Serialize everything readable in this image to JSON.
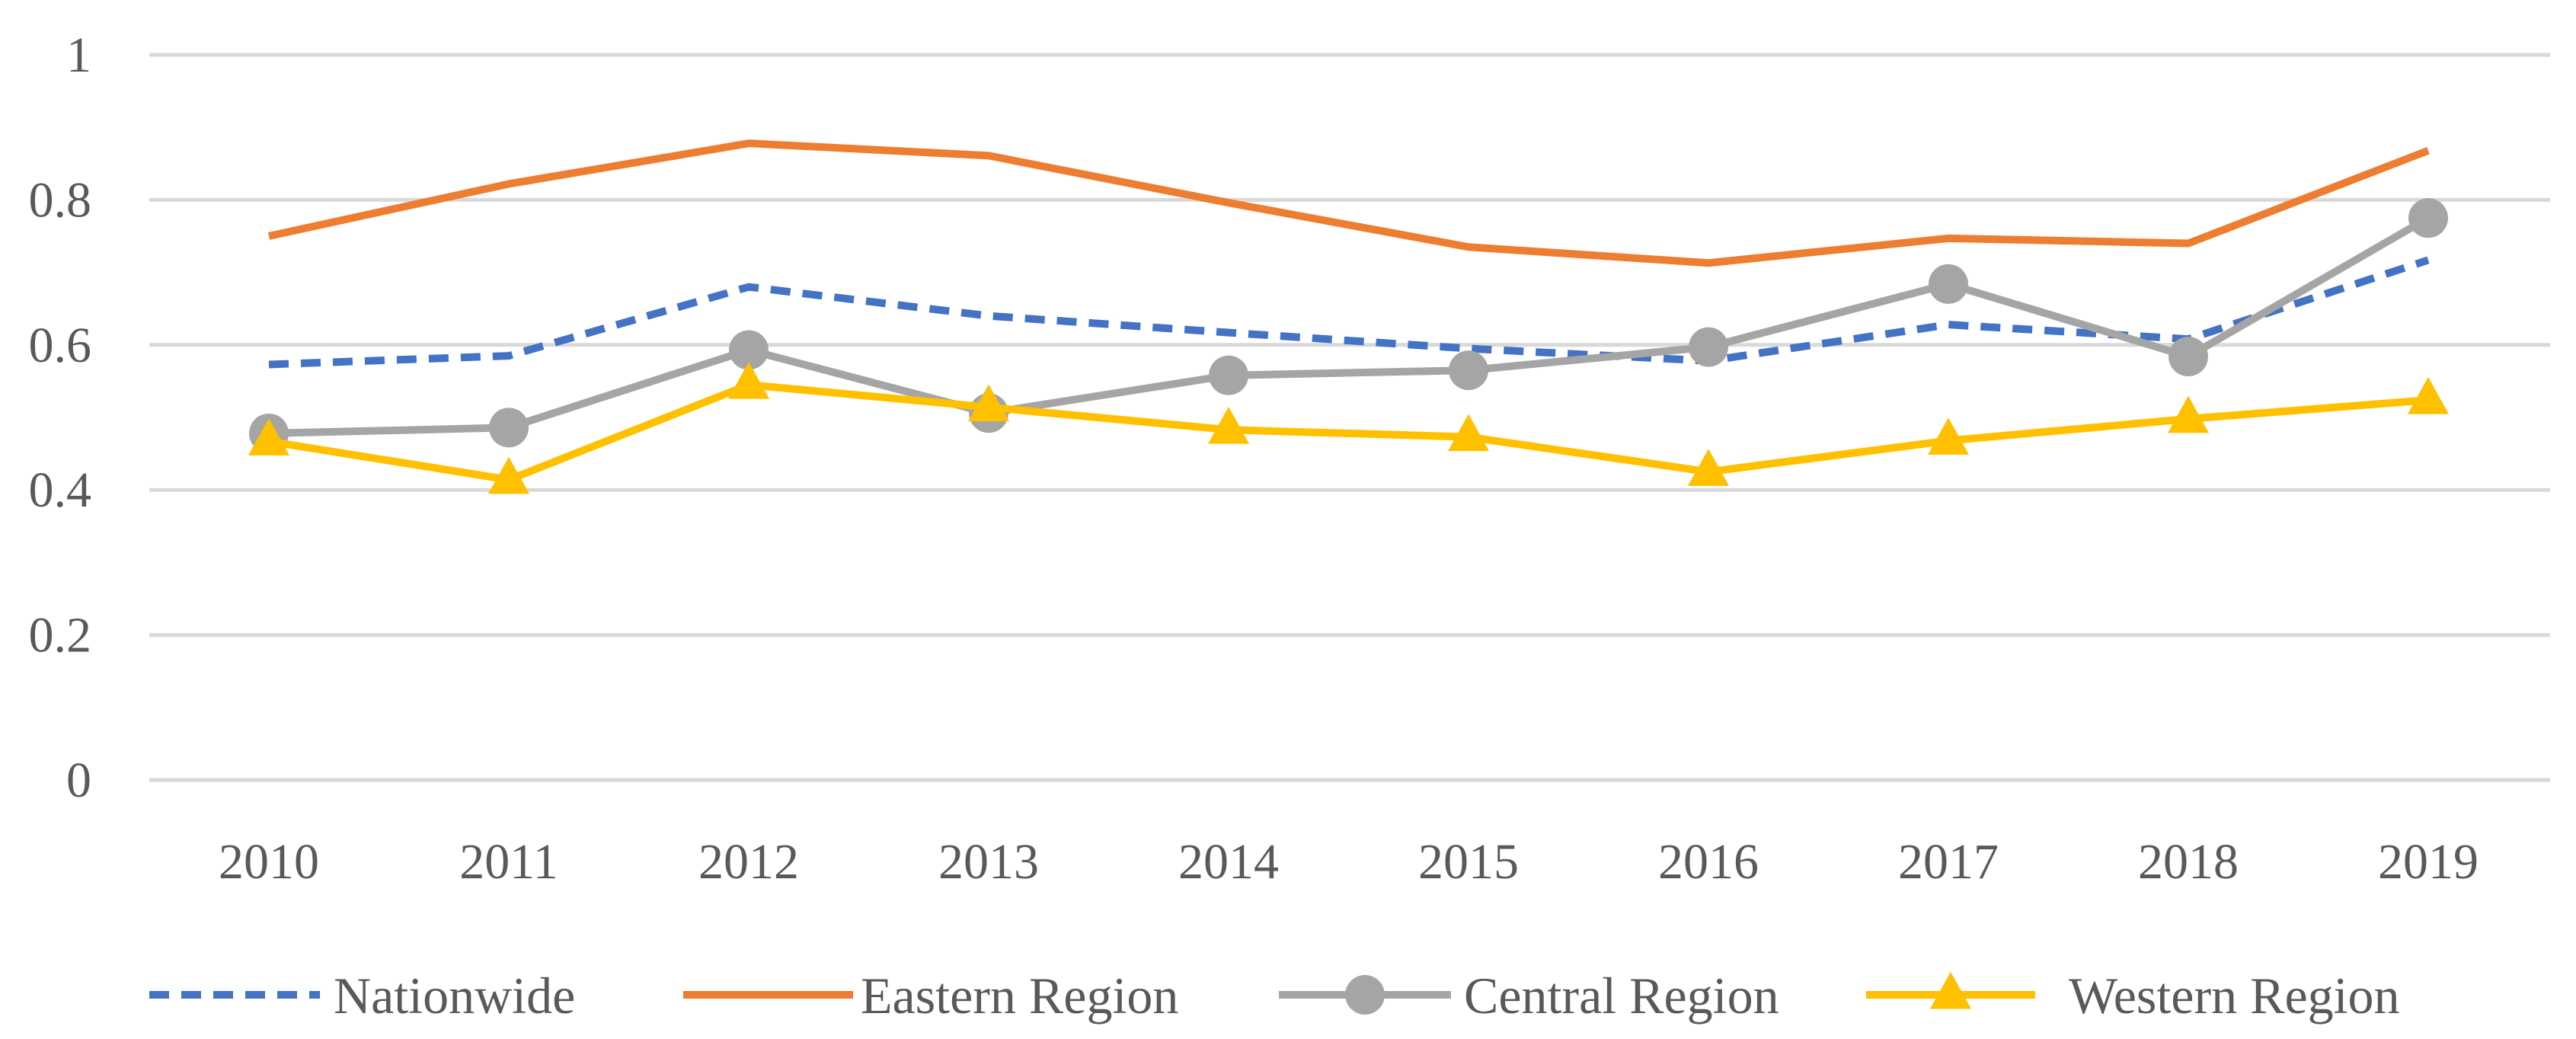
{
  "chart_data": {
    "type": "line",
    "title": "",
    "xlabel": "",
    "ylabel": "",
    "categories": [
      "2010",
      "2011",
      "2012",
      "2013",
      "2014",
      "2015",
      "2016",
      "2017",
      "2018",
      "2019"
    ],
    "ylim": [
      0,
      1
    ],
    "yticks": [
      0,
      0.2,
      0.4,
      0.6,
      0.8,
      1
    ],
    "ytick_labels": [
      "0",
      "0.2",
      "0.4",
      "0.6",
      "0.8",
      "1"
    ],
    "grid": "horizontal",
    "legend_position": "bottom",
    "series": [
      {
        "name": "Nationwide",
        "color": "#4472C4",
        "line_style": "dashed",
        "marker": "none",
        "values": [
          0.573,
          0.585,
          0.68,
          0.64,
          0.617,
          0.595,
          0.578,
          0.628,
          0.608,
          0.717
        ]
      },
      {
        "name": "Eastern Region",
        "color": "#ED7D31",
        "line_style": "solid",
        "marker": "none",
        "values": [
          0.75,
          0.822,
          0.878,
          0.861,
          0.796,
          0.735,
          0.713,
          0.747,
          0.74,
          0.868
        ]
      },
      {
        "name": "Central Region",
        "color": "#A5A5A5",
        "line_style": "solid",
        "marker": "circle",
        "values": [
          0.478,
          0.486,
          0.593,
          0.506,
          0.558,
          0.565,
          0.597,
          0.684,
          0.584,
          0.775
        ]
      },
      {
        "name": "Western Region",
        "color": "#FFC000",
        "line_style": "solid",
        "marker": "triangle",
        "values": [
          0.467,
          0.414,
          0.545,
          0.514,
          0.483,
          0.473,
          0.425,
          0.468,
          0.498,
          0.524
        ]
      }
    ]
  }
}
